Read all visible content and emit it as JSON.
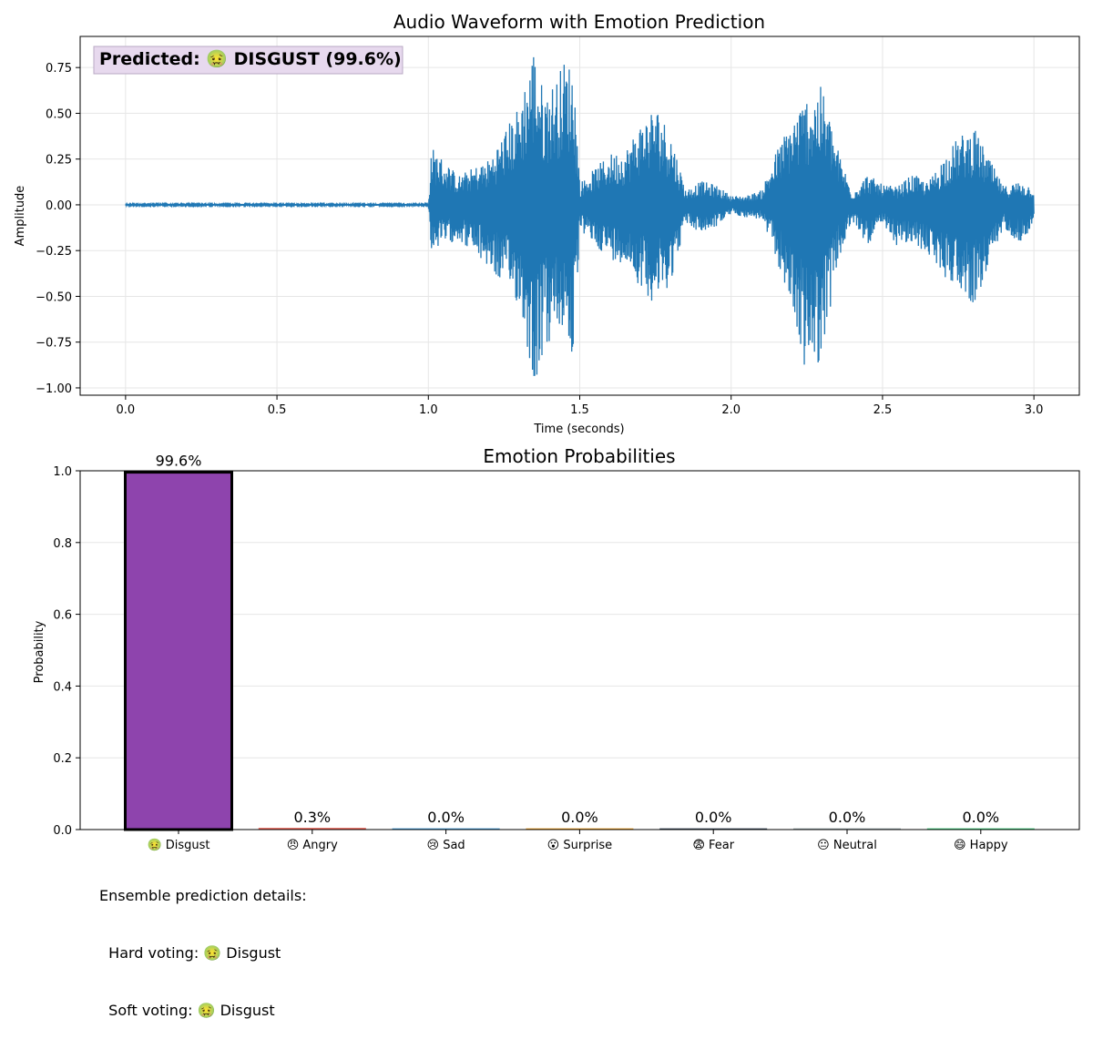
{
  "chart_data": [
    {
      "type": "line",
      "title": "Audio Waveform with Emotion Prediction",
      "xlabel": "Time (seconds)",
      "ylabel": "Amplitude",
      "xlim": [
        -0.15,
        3.15
      ],
      "ylim": [
        -1.04,
        0.92
      ],
      "xticks": [
        "0.0",
        "0.5",
        "1.0",
        "1.5",
        "2.0",
        "2.5",
        "3.0"
      ],
      "yticks": [
        "0.75",
        "0.50",
        "0.25",
        "0.00",
        "−0.25",
        "−0.50",
        "−0.75",
        "−1.00"
      ],
      "grid": true,
      "color": "#1f77b4",
      "annotation": "Predicted: 🤢 DISGUST (99.6%)",
      "annotation_bg": "#e7d9ee",
      "envelope": {
        "time": [
          0.0,
          1.0,
          1.01,
          1.1,
          1.2,
          1.3,
          1.35,
          1.38,
          1.42,
          1.45,
          1.48,
          1.5,
          1.55,
          1.6,
          1.65,
          1.7,
          1.75,
          1.8,
          1.85,
          1.9,
          1.95,
          2.0,
          2.05,
          2.1,
          2.15,
          2.2,
          2.25,
          2.3,
          2.35,
          2.4,
          2.45,
          2.5,
          2.55,
          2.6,
          2.65,
          2.7,
          2.75,
          2.8,
          2.85,
          2.9,
          2.95,
          3.0
        ],
        "max": [
          0.005,
          0.005,
          0.32,
          0.16,
          0.25,
          0.55,
          0.88,
          0.62,
          0.68,
          0.8,
          0.76,
          0.12,
          0.2,
          0.28,
          0.3,
          0.45,
          0.55,
          0.4,
          0.08,
          0.13,
          0.11,
          0.05,
          0.05,
          0.08,
          0.3,
          0.47,
          0.6,
          0.65,
          0.32,
          0.07,
          0.17,
          0.11,
          0.1,
          0.17,
          0.12,
          0.26,
          0.37,
          0.43,
          0.26,
          0.1,
          0.13,
          0.1
        ],
        "min": [
          -0.005,
          -0.005,
          -0.25,
          -0.19,
          -0.35,
          -0.55,
          -1.0,
          -0.82,
          -0.72,
          -0.68,
          -0.9,
          -0.14,
          -0.22,
          -0.3,
          -0.32,
          -0.45,
          -0.55,
          -0.43,
          -0.1,
          -0.16,
          -0.12,
          -0.05,
          -0.07,
          -0.08,
          -0.3,
          -0.58,
          -0.95,
          -0.84,
          -0.34,
          -0.09,
          -0.22,
          -0.12,
          -0.23,
          -0.22,
          -0.27,
          -0.39,
          -0.45,
          -0.55,
          -0.38,
          -0.12,
          -0.21,
          -0.12
        ]
      }
    },
    {
      "type": "bar",
      "title": "Emotion Probabilities",
      "xlabel": "",
      "ylabel": "Probability",
      "ylim": [
        0,
        1
      ],
      "yticks": [
        "0.0",
        "0.2",
        "0.4",
        "0.6",
        "0.8",
        "1.0"
      ],
      "grid": true,
      "categories": [
        "🤢 Disgust",
        "😠 Angry",
        "😢 Sad",
        "😮 Surprise",
        "😨 Fear",
        "😐 Neutral",
        "😄 Happy"
      ],
      "values": [
        0.996,
        0.003,
        0.0,
        0.0,
        0.0,
        0.0,
        0.0
      ],
      "labels": [
        "99.6%",
        "0.3%",
        "0.0%",
        "0.0%",
        "0.0%",
        "0.0%",
        "0.0%"
      ],
      "colors": [
        "#8e44ad",
        "#e74c3c",
        "#3498db",
        "#f39c12",
        "#2c3e50",
        "#95a5a6",
        "#2ecc71"
      ],
      "highlight": 0
    }
  ],
  "details": {
    "heading": "Ensemble prediction details:",
    "hard": "  Hard voting: 🤢 Disgust",
    "soft": "  Soft voting: 🤢 Disgust"
  }
}
